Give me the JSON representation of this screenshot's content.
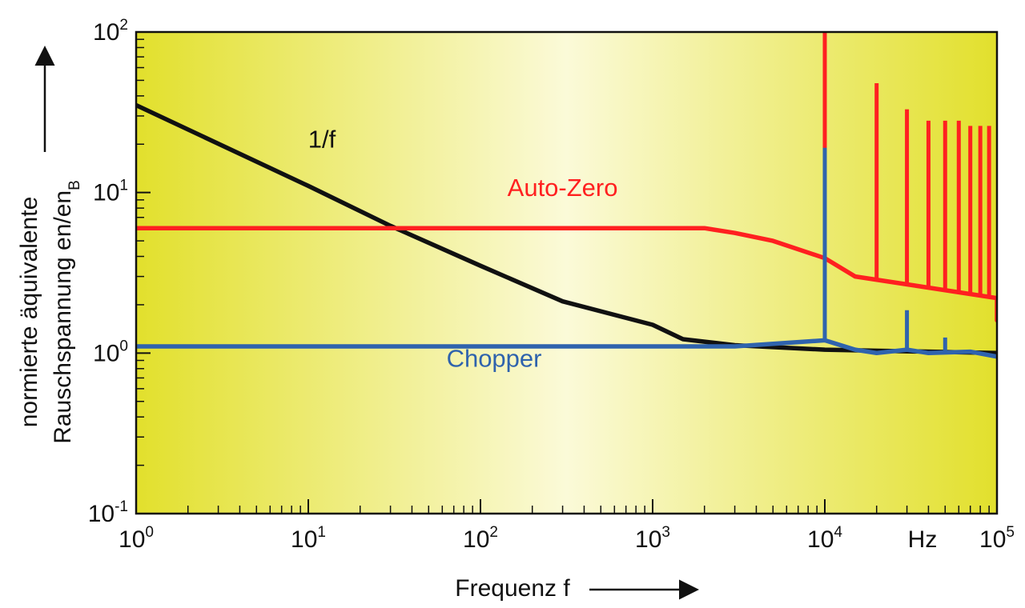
{
  "chart_data": {
    "type": "line",
    "x_scale": "log",
    "y_scale": "log",
    "xlim": [
      1,
      100000
    ],
    "ylim": [
      0.1,
      100
    ],
    "xlabel": "Frequenz f",
    "ylabel_line1": "normierte äquivalente",
    "ylabel_line2_main": "Rauschspannung en/en",
    "ylabel_line2_sub": "B",
    "x_unit": "Hz",
    "x_ticks": [
      {
        "value": 1,
        "base": "10",
        "exp": "0"
      },
      {
        "value": 10,
        "base": "10",
        "exp": "1"
      },
      {
        "value": 100,
        "base": "10",
        "exp": "2"
      },
      {
        "value": 1000,
        "base": "10",
        "exp": "3"
      },
      {
        "value": 10000,
        "base": "10",
        "exp": "4"
      },
      {
        "value": 100000,
        "base": "10",
        "exp": "5"
      }
    ],
    "y_ticks": [
      {
        "value": 0.1,
        "base": "10",
        "exp": "-1"
      },
      {
        "value": 1,
        "base": "10",
        "exp": "0"
      },
      {
        "value": 10,
        "base": "10",
        "exp": "1"
      },
      {
        "value": 100,
        "base": "10",
        "exp": "2"
      }
    ],
    "grid": false,
    "background": {
      "left": "#e2e02c",
      "center": "#fbfad8",
      "right": "#e2e02c"
    },
    "series": [
      {
        "name": "1/f",
        "color": "#111111",
        "points": [
          [
            1,
            35
          ],
          [
            10,
            11
          ],
          [
            30,
            6.2
          ],
          [
            100,
            3.5
          ],
          [
            300,
            2.1
          ],
          [
            1000,
            1.5
          ],
          [
            1500,
            1.22
          ],
          [
            3000,
            1.12
          ],
          [
            10000,
            1.05
          ],
          [
            100000,
            1.0
          ]
        ]
      },
      {
        "name": "Auto-Zero",
        "color": "#ff2020",
        "points": [
          [
            1,
            6
          ],
          [
            2000,
            6
          ],
          [
            3000,
            5.6
          ],
          [
            5000,
            5.0
          ],
          [
            10000,
            3.9
          ],
          [
            15000,
            3.0
          ],
          [
            100000,
            2.2
          ]
        ],
        "end_drop": [
          [
            100000,
            1.6
          ]
        ],
        "spikes": [
          [
            10000,
            100
          ],
          [
            20000,
            48
          ],
          [
            30000,
            33
          ],
          [
            40000,
            28
          ],
          [
            50000,
            28
          ],
          [
            60000,
            28
          ],
          [
            70000,
            26
          ],
          [
            80000,
            26
          ],
          [
            90000,
            26
          ]
        ]
      },
      {
        "name": "Chopper",
        "color": "#2f63ad",
        "points": [
          [
            1,
            1.1
          ],
          [
            3000,
            1.1
          ],
          [
            10000,
            1.2
          ],
          [
            15000,
            1.05
          ],
          [
            20000,
            1.0
          ],
          [
            30000,
            1.05
          ],
          [
            40000,
            1.0
          ],
          [
            70000,
            1.02
          ],
          [
            100000,
            0.95
          ]
        ],
        "spikes": [
          [
            10000,
            19
          ],
          [
            30000,
            1.85
          ],
          [
            50000,
            1.25
          ]
        ]
      }
    ],
    "labels": [
      {
        "text": "1/f",
        "x": 12,
        "y": 19,
        "color": "#111111"
      },
      {
        "text": "Auto-Zero",
        "x": 300,
        "y": 9.5,
        "color": "#ff2020"
      },
      {
        "text": "Chopper",
        "x": 120,
        "y": 0.82,
        "color": "#2f63ad"
      }
    ]
  }
}
